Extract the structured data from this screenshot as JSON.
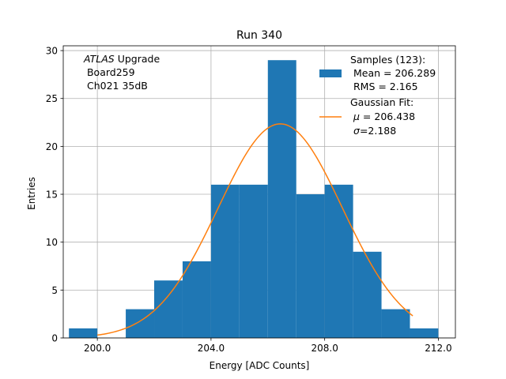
{
  "chart_data": {
    "type": "bar",
    "title": "Run 340",
    "xlabel": "Energy [ADC Counts]",
    "ylabel": "Entries",
    "xlim": [
      198.8,
      212.6
    ],
    "ylim": [
      0,
      30.5
    ],
    "grid": true,
    "x_ticks": [
      200.0,
      204.0,
      208.0,
      212.0
    ],
    "x_tick_labels": [
      "200.0",
      "204.0",
      "208.0",
      "212.0"
    ],
    "y_ticks": [
      0,
      5,
      10,
      15,
      20,
      25,
      30
    ],
    "y_tick_labels": [
      "0",
      "5",
      "10",
      "15",
      "20",
      "25",
      "30"
    ],
    "bin_edges": [
      199,
      200,
      201,
      202,
      203,
      204,
      205,
      206,
      207,
      208,
      209,
      210,
      211,
      212
    ],
    "counts": [
      1,
      0,
      3,
      6,
      8,
      16,
      16,
      29,
      15,
      16,
      9,
      3,
      1
    ],
    "fit": {
      "type": "gaussian",
      "mu": 206.438,
      "sigma": 2.188,
      "amplitude": 22.35,
      "x_range": [
        200.0,
        211.1
      ]
    },
    "annotation_lines": [
      {
        "text": "ATLAS",
        "italic": true,
        "suffix": " Upgrade"
      },
      {
        "text": " Board259"
      },
      {
        "text": " Ch021 35dB"
      }
    ],
    "legend_position": "top-right",
    "legend": [
      {
        "kind": "patch",
        "lines": [
          "Samples (123):",
          " Mean = 206.289",
          " RMS = 2.165"
        ]
      },
      {
        "kind": "line",
        "lines": [
          "Gaussian Fit:"
        ],
        "mu_label": "μ",
        "mu_value": " = 206.438",
        "sigma_label": "σ",
        "sigma_value": "=2.188"
      }
    ],
    "colors": {
      "bars": "#1f77b4",
      "fit": "#ff7f0e",
      "grid": "#b0b0b0",
      "axes": "#000000"
    }
  }
}
